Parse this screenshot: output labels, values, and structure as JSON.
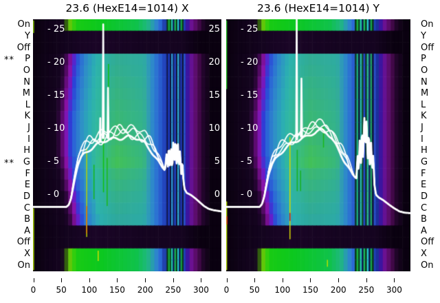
{
  "titles": {
    "left": "23.6 (HexE14=1014) X",
    "right": "23.6 (HexE14=1014) Y"
  },
  "row_labels": {
    "labels": [
      "On",
      "Y",
      "Off",
      "P",
      "O",
      "N",
      "M",
      "L",
      "K",
      "J",
      "I",
      "H",
      "G",
      "F",
      "E",
      "D",
      "C",
      "B",
      "A",
      "Off",
      "X",
      "On"
    ],
    "left_markers": {
      "3": "**",
      "12": "**"
    }
  },
  "y_axis": {
    "tick_values": [
      25,
      20,
      15,
      10,
      5,
      0
    ],
    "tick_prefix": "- "
  },
  "x_axis": {
    "ticks": [
      0,
      50,
      100,
      150,
      200,
      250,
      300
    ]
  },
  "chart_data": {
    "type": "heatmap+line",
    "x_range": [
      0,
      337
    ],
    "line_axis_ticks": [
      25,
      20,
      15,
      10,
      5,
      0
    ],
    "rows": [
      "On",
      "Y",
      "Off",
      "P",
      "O",
      "N",
      "M",
      "L",
      "K",
      "J",
      "I",
      "H",
      "G",
      "F",
      "E",
      "D",
      "C",
      "B",
      "A",
      "Off",
      "X",
      "On"
    ],
    "row_specs": [
      {
        "type": "green"
      },
      {
        "type": "dark"
      },
      {
        "type": "dark"
      },
      {
        "type": "band",
        "onset": 60,
        "green": 0.25
      },
      {
        "type": "band",
        "onset": 58,
        "green": 0.32
      },
      {
        "type": "band",
        "onset": 56,
        "green": 0.4
      },
      {
        "type": "band",
        "onset": 54,
        "green": 0.46
      },
      {
        "type": "band",
        "onset": 52,
        "green": 0.52
      },
      {
        "type": "band",
        "onset": 50,
        "green": 0.58
      },
      {
        "type": "band",
        "onset": 50,
        "green": 0.62
      },
      {
        "type": "band",
        "onset": 50,
        "green": 0.66
      },
      {
        "type": "band",
        "onset": 50,
        "green": 0.78
      },
      {
        "type": "band",
        "onset": 52,
        "green": 0.88
      },
      {
        "type": "band",
        "onset": 55,
        "green": 0.6
      },
      {
        "type": "band",
        "onset": 58,
        "green": 0.46
      },
      {
        "type": "band",
        "onset": 62,
        "green": 0.34
      },
      {
        "type": "band",
        "onset": 65,
        "green": 0.24
      },
      {
        "type": "band",
        "onset": 68,
        "green": 0.15
      },
      {
        "type": "dark"
      },
      {
        "type": "dark"
      },
      {
        "type": "green"
      },
      {
        "type": "green"
      }
    ],
    "palette": {
      "bg": "#0a0110",
      "dark1": "#150420",
      "dark2": "#1a0526",
      "purple0": "#30063e",
      "purple1": "#620c76",
      "magenta": "#8c12a8",
      "violet": "#6a1ac8",
      "blue1": "#2b3fd8",
      "blue2": "#2b68d6",
      "blue3": "#2e8ec8",
      "cyan": "#2bacb4",
      "cyan_bright": "#28b8c6",
      "teal_base": "#2aa4aa",
      "green_max": "#44c44e",
      "blue_deep": "#2348c0",
      "navy": "#1b2f9a",
      "post_violet": "#3f12a0",
      "post_purple": "#6e1190",
      "post_dark": "#500a56",
      "fade": "#200529",
      "green_dk": "#2a5410",
      "yellow_green": "#7ac008",
      "green_a": "#3fd00a",
      "green_b": "#17ca14",
      "green_c": "#0cc81e",
      "green_d": "#0fc24a",
      "teal_g": "#1eb87e",
      "line": "#ffffff"
    },
    "stripes": {
      "blue": [
        "#131c50",
        "#1e3ed0",
        "#0e1538",
        "#2f9ed8",
        "#13205a",
        "#2544cc",
        "#0e1538",
        "#31b0d0",
        "#15265e",
        "#2038b8",
        "#0e1538",
        "#2a50c8"
      ],
      "greenish": [
        "#0d3530",
        "#1da87c",
        "#0e1538",
        "#28b8a8",
        "#124a28",
        "#2544cc",
        "#0d3530",
        "#2cb890",
        "#15265e",
        "#1ea060",
        "#0e1538",
        "#2a50c8"
      ],
      "green_row": [
        "#0a3a18",
        "#18b040",
        "#0c4c20",
        "#22c8b0",
        "#0d1550",
        "#1cb858",
        "#0a3a18",
        "#28c8d0",
        "#0d1550",
        "#16a848",
        "#0a3a18",
        "#2040b8"
      ]
    },
    "panels": [
      {
        "id": "X",
        "title": "23.6 (HexE14=1014) X",
        "stripe_range": [
          239,
          272
        ],
        "stripe_set": "blue",
        "wiggle_end": 236,
        "curve_base": [
          [
            0,
            -1.8
          ],
          [
            60,
            -1.8
          ],
          [
            64,
            -1.5
          ],
          [
            68,
            -0.6
          ],
          [
            72,
            1.2
          ],
          [
            76,
            3.0
          ],
          [
            80,
            4.4
          ],
          [
            86,
            5.6
          ],
          [
            92,
            6.3
          ],
          [
            100,
            6.9
          ],
          [
            110,
            7.4
          ],
          [
            120,
            7.8
          ],
          [
            130,
            8.1
          ],
          [
            140,
            8.4
          ],
          [
            150,
            8.6
          ],
          [
            160,
            8.7
          ],
          [
            170,
            8.8
          ],
          [
            180,
            8.6
          ],
          [
            190,
            8.3
          ],
          [
            200,
            7.8
          ],
          [
            210,
            6.9
          ],
          [
            218,
            5.9
          ],
          [
            226,
            4.8
          ],
          [
            232,
            4.1
          ],
          [
            236,
            3.7
          ],
          [
            239,
            6.3
          ],
          [
            241,
            3.9
          ],
          [
            243,
            7.8
          ],
          [
            245,
            4.1
          ],
          [
            247,
            7.3
          ],
          [
            249,
            3.3
          ],
          [
            251,
            8.4
          ],
          [
            253,
            4.9
          ],
          [
            255,
            8.9
          ],
          [
            257,
            4.3
          ],
          [
            259,
            8.1
          ],
          [
            261,
            3.7
          ],
          [
            263,
            6.9
          ],
          [
            265,
            2.9
          ],
          [
            267,
            5.4
          ],
          [
            269,
            2.2
          ],
          [
            271,
            0.9
          ],
          [
            275,
            0.3
          ],
          [
            282,
            0.0
          ],
          [
            290,
            -0.5
          ],
          [
            298,
            -1.1
          ],
          [
            306,
            -1.7
          ],
          [
            314,
            -2.1
          ],
          [
            322,
            -2.3
          ],
          [
            337,
            -2.5
          ]
        ],
        "traces": [
          {
            "dy": 0.0,
            "amp": 0.22,
            "lw": 2.8,
            "ph": 0.0
          },
          {
            "dy": 0.6,
            "amp": 0.55,
            "lw": 1.7,
            "ph": 1.7
          },
          {
            "dy": 1.0,
            "amp": 0.7,
            "lw": 1.7,
            "ph": 3.9
          },
          {
            "dy": 1.4,
            "amp": 0.5,
            "lw": 1.7,
            "ph": 5.3
          }
        ],
        "spikes": [
          [
            [
              124.6,
              8.6
            ],
            [
              125.6,
              25.8
            ],
            [
              126.6,
              8.6
            ]
          ],
          [
            [
              133.2,
              8.6
            ],
            [
              134.2,
              16.2
            ],
            [
              135.2,
              8.6
            ]
          ],
          [
            [
              119.5,
              8.2
            ],
            [
              120.3,
              11.6
            ],
            [
              121.1,
              8.2
            ]
          ]
        ],
        "artifacts": [
          {
            "x": 96,
            "r0": 11.2,
            "r1": 19.0,
            "c": "#b8d400"
          },
          {
            "x": 96,
            "r0": 16.3,
            "r1": 18.7,
            "c": "#e07800"
          },
          {
            "x": 109,
            "r0": 12.7,
            "r1": 15.7,
            "c": "#18b818"
          },
          {
            "x": 126,
            "r0": 3.9,
            "r1": 15.1,
            "c": "#10c010"
          },
          {
            "x": 132.5,
            "r0": 12.1,
            "r1": 16.3,
            "c": "#18b818"
          },
          {
            "x": 135,
            "r0": 3.9,
            "r1": 7.6,
            "c": "#10c010"
          },
          {
            "x": 116.5,
            "r0": 20.2,
            "r1": 21.1,
            "c": "#d4e000"
          },
          {
            "x": 1,
            "r0": 0.1,
            "r1": 1.2,
            "c": "#80c000"
          },
          {
            "x": 1,
            "r0": 16.5,
            "r1": 21.9,
            "c": "#a8d400"
          }
        ]
      },
      {
        "id": "Y",
        "title": "23.6 (HexE14=1014) Y",
        "stripe_range": [
          230,
          267
        ],
        "stripe_set": "greenish",
        "wiggle_end": 230,
        "curve_base": [
          [
            0,
            -1.8
          ],
          [
            60,
            -1.8
          ],
          [
            64,
            -1.4
          ],
          [
            68,
            -0.3
          ],
          [
            72,
            1.5
          ],
          [
            76,
            3.2
          ],
          [
            82,
            4.6
          ],
          [
            88,
            5.5
          ],
          [
            96,
            6.3
          ],
          [
            106,
            7.0
          ],
          [
            116,
            7.6
          ],
          [
            126,
            8.1
          ],
          [
            136,
            8.6
          ],
          [
            146,
            9.0
          ],
          [
            156,
            9.4
          ],
          [
            164,
            9.6
          ],
          [
            172,
            9.7
          ],
          [
            180,
            9.3
          ],
          [
            188,
            8.6
          ],
          [
            196,
            7.6
          ],
          [
            204,
            6.4
          ],
          [
            212,
            5.1
          ],
          [
            220,
            3.9
          ],
          [
            226,
            3.1
          ],
          [
            230,
            2.7
          ],
          [
            233,
            2.5
          ],
          [
            235,
            6.2
          ],
          [
            237,
            3.0
          ],
          [
            239,
            8.8
          ],
          [
            241,
            4.2
          ],
          [
            243,
            10.6
          ],
          [
            245,
            5.2
          ],
          [
            247,
            12.2
          ],
          [
            249,
            6.4
          ],
          [
            251,
            11.6
          ],
          [
            253,
            5.0
          ],
          [
            255,
            10.2
          ],
          [
            257,
            4.0
          ],
          [
            259,
            8.4
          ],
          [
            261,
            3.2
          ],
          [
            263,
            6.2
          ],
          [
            265,
            1.6
          ],
          [
            268,
            0.0
          ],
          [
            273,
            -0.4
          ],
          [
            281,
            -0.8
          ],
          [
            290,
            -1.4
          ],
          [
            300,
            -2.0
          ],
          [
            310,
            -2.5
          ],
          [
            320,
            -2.7
          ],
          [
            337,
            -2.8
          ]
        ],
        "traces": [
          {
            "dy": 0.0,
            "amp": 0.2,
            "lw": 2.8,
            "ph": 0.5
          },
          {
            "dy": 0.5,
            "amp": 0.45,
            "lw": 1.7,
            "ph": 2.2
          },
          {
            "dy": 0.9,
            "amp": 0.55,
            "lw": 1.7,
            "ph": 4.1
          },
          {
            "dy": 1.2,
            "amp": 0.4,
            "lw": 1.7,
            "ph": 0.9
          }
        ],
        "spikes": [
          [
            [
              125.2,
              8.4
            ],
            [
              126.1,
              26.8
            ],
            [
              127.0,
              8.4
            ]
          ],
          [
            [
              133.6,
              8.8
            ],
            [
              134.6,
              17.6
            ],
            [
              135.6,
              8.8
            ]
          ]
        ],
        "artifacts": [
          {
            "x": 0.7,
            "r0": 0.1,
            "r1": 6.1,
            "c": "#20c020"
          },
          {
            "x": 0.7,
            "r0": 15.9,
            "r1": 21.9,
            "c": "#b0d800"
          },
          {
            "x": 1.5,
            "r0": 17.2,
            "r1": 17.9,
            "c": "#d03020"
          },
          {
            "x": 114,
            "r0": 10.3,
            "r1": 19.2,
            "c": "#d4d400"
          },
          {
            "x": 114,
            "r0": 16.9,
            "r1": 17.6,
            "c": "#cc2020"
          },
          {
            "x": 127,
            "r0": 11.4,
            "r1": 15.0,
            "c": "#18b020"
          },
          {
            "x": 133,
            "r0": 13.2,
            "r1": 15.0,
            "c": "#18b020"
          },
          {
            "x": 174,
            "r0": 9.4,
            "r1": 11.2,
            "c": "#18b818"
          },
          {
            "x": 181,
            "r0": 21.0,
            "r1": 21.6,
            "c": "#b8e000"
          }
        ]
      }
    ]
  }
}
